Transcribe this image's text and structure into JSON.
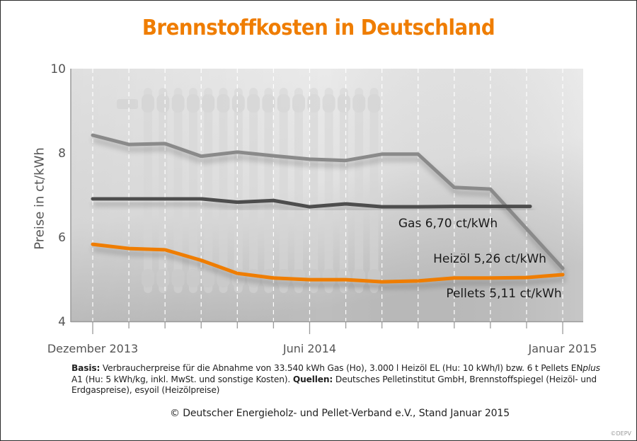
{
  "title": "Brennstoffkosten in Deutschland",
  "chart_data": {
    "type": "line",
    "title": "Brennstoffkosten in Deutschland",
    "xlabel": "",
    "ylabel": "Preise in ct/kWh",
    "ylim": [
      4,
      10
    ],
    "yticks": [
      4,
      6,
      8,
      10
    ],
    "ytick_labels": [
      "4",
      "6",
      "8",
      "10"
    ],
    "x_months": [
      "2013-12",
      "2014-01",
      "2014-02",
      "2014-03",
      "2014-04",
      "2014-05",
      "2014-06",
      "2014-07",
      "2014-08",
      "2014-09",
      "2014-10",
      "2014-11",
      "2014-12",
      "2015-01"
    ],
    "xtick_labels": [
      {
        "index": 0,
        "label": "Dezember 2013"
      },
      {
        "index": 6,
        "label": "Juni 2014"
      },
      {
        "index": 13,
        "label": "Januar 2015"
      }
    ],
    "grid": "vertical-dashed",
    "series": [
      {
        "name": "Heizöl",
        "color": "#8a8a8a",
        "values": [
          8.42,
          8.2,
          8.22,
          7.92,
          8.02,
          7.93,
          7.85,
          7.82,
          7.97,
          7.97,
          7.18,
          7.14,
          null,
          5.26
        ],
        "label": "Heizöl  5,26 ct/kWh"
      },
      {
        "name": "Gas",
        "color": "#4d4d4d",
        "values": [
          6.91,
          6.91,
          6.91,
          6.91,
          6.83,
          6.87,
          6.72,
          6.79,
          6.72,
          6.72,
          6.73,
          6.73,
          6.73,
          null
        ],
        "label": "Gas  6,70 ct/kWh"
      },
      {
        "name": "Pellets",
        "color": "#ef7d00",
        "values": [
          5.83,
          5.73,
          5.7,
          5.45,
          5.14,
          5.03,
          4.99,
          4.99,
          4.94,
          4.96,
          5.03,
          5.03,
          5.04,
          5.11
        ],
        "label": "Pellets  5,11 ct/kWh"
      }
    ],
    "annotations": [
      "Gas  6,70 ct/kWh",
      "Heizöl  5,26 ct/kWh",
      "Pellets  5,11 ct/kWh"
    ]
  },
  "footnote": {
    "basis_label": "Basis:",
    "basis_text": " Verbraucherpreise für die Abnahme von 33.540 kWh Gas (Ho), 3.000 l Heizöl EL (Hu: 10 kWh/l) bzw. 6 t Pellets EN",
    "enplus_italic": "plus",
    "basis_text2": " A1 (Hu: 5 kWh/kg, inkl. MwSt. und sonstige Kosten). ",
    "sources_label": "Quellen:",
    "sources_text": " Deutsches Pelletinstitut GmbH, Brennstoffspiegel (Heizöl- und Erdgaspreise), esyoil (Heizölpreise)"
  },
  "copyright": "© Deutscher Energieholz- und Pellet-Verband e.V., Stand Januar 2015",
  "watermark": "©DEPV",
  "colors": {
    "accent": "#ef7d00",
    "gas": "#4d4d4d",
    "heizoel": "#8a8a8a",
    "plot_bg": "#e6e6e6"
  }
}
